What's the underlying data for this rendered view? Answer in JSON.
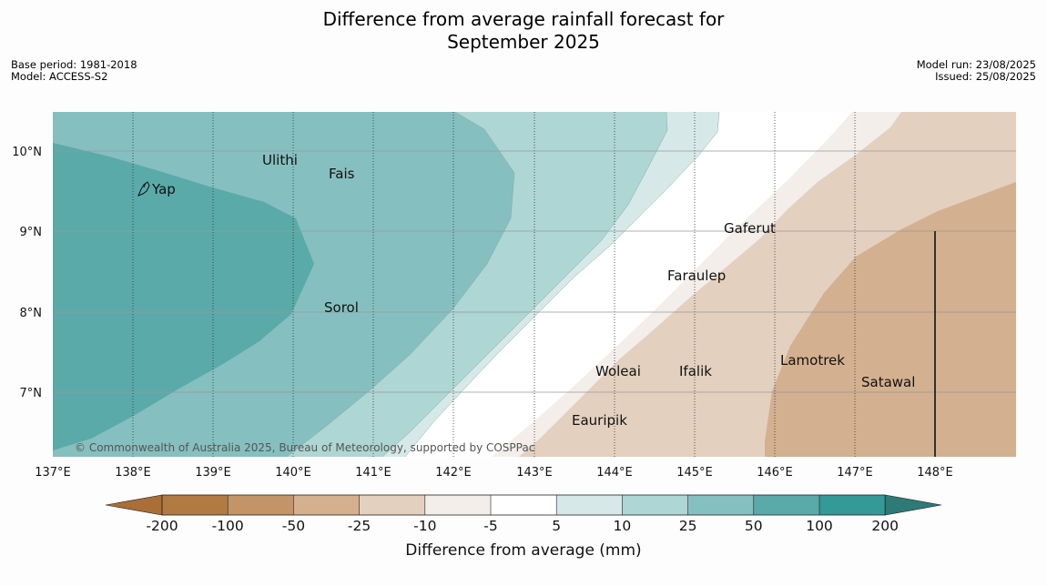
{
  "title": {
    "line1": "Difference from average rainfall forecast for",
    "line2": "September 2025"
  },
  "meta_left": {
    "base_period": "Base period: 1981-2018",
    "model": "Model: ACCESS-S2"
  },
  "meta_right": {
    "model_run": "Model run: 23/08/2025",
    "issued": "Issued: 25/08/2025"
  },
  "credit": "© Commonwealth of Australia 2025, Bureau of Meteorology, supported by COSPPac",
  "axes": {
    "x_ticks": [
      "137°E",
      "138°E",
      "139°E",
      "140°E",
      "141°E",
      "142°E",
      "143°E",
      "144°E",
      "145°E",
      "146°E",
      "147°E",
      "148°E"
    ],
    "y_ticks": [
      "10°N",
      "9°N",
      "8°N",
      "7°N"
    ]
  },
  "places": [
    "Ulithi",
    "Fais",
    "Yap",
    "Gaferut",
    "Faraulep",
    "Sorol",
    "Lamotrek",
    "Woleai",
    "Ifalik",
    "Satawal",
    "Eauripik"
  ],
  "legend": {
    "title": "Difference from average (mm)",
    "ticks": [
      "-200",
      "-100",
      "-50",
      "-25",
      "-10",
      "-5",
      "5",
      "10",
      "25",
      "50",
      "100",
      "200"
    ],
    "colors": [
      "#a96f36",
      "#b07a43",
      "#c39468",
      "#d5b08f",
      "#e3d0be",
      "#f3eee9",
      "#ffffff",
      "#d6e9e8",
      "#aed6d5",
      "#86bfbf",
      "#5aaaa9",
      "#349a98",
      "#2e7a78"
    ]
  }
}
